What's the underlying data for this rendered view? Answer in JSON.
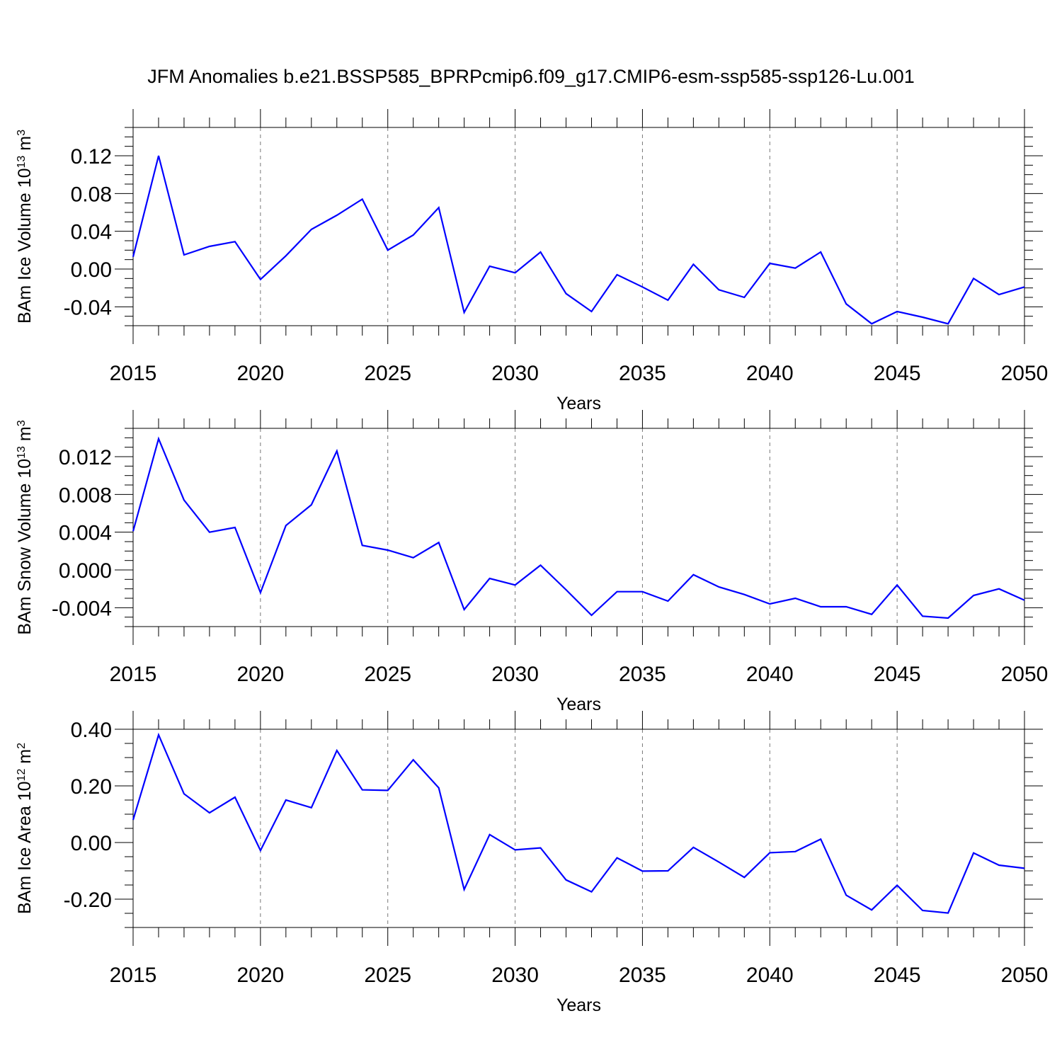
{
  "title": "JFM Anomalies b.e21.BSSP585_BPRPcmip6.f09_g17.CMIP6-esm-ssp585-ssp126-Lu.001",
  "colors": {
    "series": "#0000ff",
    "axis": "#000000",
    "grid": "#777777"
  },
  "chart_data": [
    {
      "type": "line",
      "name": "ice-volume",
      "ylabel": {
        "base": "BAm Ice Volume 10",
        "exp": "13",
        "unit": " m",
        "unit_exp": "3"
      },
      "xlabel": "Years",
      "xlim": [
        2015,
        2050
      ],
      "ylim": [
        -0.06,
        0.15
      ],
      "xticks": [
        2015,
        2020,
        2025,
        2030,
        2035,
        2040,
        2045,
        2050
      ],
      "yticks": [
        -0.04,
        0.0,
        0.04,
        0.08,
        0.12
      ],
      "ytick_labels": [
        "-0.04",
        "0.00",
        "0.04",
        "0.08",
        "0.12"
      ],
      "yminor_step": 0.01,
      "x": [
        2015,
        2016,
        2017,
        2018,
        2019,
        2020,
        2021,
        2022,
        2023,
        2024,
        2025,
        2026,
        2027,
        2028,
        2029,
        2030,
        2031,
        2032,
        2033,
        2034,
        2035,
        2036,
        2037,
        2038,
        2039,
        2040,
        2041,
        2042,
        2043,
        2044,
        2045,
        2046,
        2047,
        2048,
        2049,
        2050
      ],
      "values": [
        0.013,
        0.12,
        0.015,
        0.024,
        0.029,
        -0.011,
        0.014,
        0.042,
        0.057,
        0.074,
        0.02,
        0.036,
        0.065,
        -0.046,
        0.003,
        -0.004,
        0.018,
        -0.026,
        -0.045,
        -0.006,
        -0.019,
        -0.033,
        0.005,
        -0.022,
        -0.03,
        0.006,
        0.001,
        0.018,
        -0.037,
        -0.058,
        -0.045,
        -0.051,
        -0.058,
        -0.01,
        -0.027,
        -0.019
      ]
    },
    {
      "type": "line",
      "name": "snow-volume",
      "ylabel": {
        "base": "BAm Snow Volume 10",
        "exp": "13",
        "unit": " m",
        "unit_exp": "3"
      },
      "xlabel": "Years",
      "xlim": [
        2015,
        2050
      ],
      "ylim": [
        -0.006,
        0.015
      ],
      "xticks": [
        2015,
        2020,
        2025,
        2030,
        2035,
        2040,
        2045,
        2050
      ],
      "yticks": [
        -0.004,
        0.0,
        0.004,
        0.008,
        0.012
      ],
      "ytick_labels": [
        "-0.004",
        "0.000",
        "0.004",
        "0.008",
        "0.012"
      ],
      "yminor_step": 0.001,
      "x": [
        2015,
        2016,
        2017,
        2018,
        2019,
        2020,
        2021,
        2022,
        2023,
        2024,
        2025,
        2026,
        2027,
        2028,
        2029,
        2030,
        2031,
        2032,
        2033,
        2034,
        2035,
        2036,
        2037,
        2038,
        2039,
        2040,
        2041,
        2042,
        2043,
        2044,
        2045,
        2046,
        2047,
        2048,
        2049,
        2050
      ],
      "values": [
        0.0041,
        0.0139,
        0.0074,
        0.004,
        0.0045,
        -0.0024,
        0.0047,
        0.0069,
        0.0126,
        0.0026,
        0.0021,
        0.0013,
        0.0029,
        -0.0042,
        -0.0009,
        -0.0016,
        0.0005,
        -0.0021,
        -0.0048,
        -0.0023,
        -0.0023,
        -0.0033,
        -0.0005,
        -0.0018,
        -0.0026,
        -0.0036,
        -0.003,
        -0.0039,
        -0.0039,
        -0.0047,
        -0.0016,
        -0.0049,
        -0.0051,
        -0.0027,
        -0.002,
        -0.0032
      ]
    },
    {
      "type": "line",
      "name": "ice-area",
      "ylabel": {
        "base": "BAm Ice Area 10",
        "exp": "12",
        "unit": " m",
        "unit_exp": "2"
      },
      "xlabel": "Years",
      "xlim": [
        2015,
        2050
      ],
      "ylim": [
        -0.3,
        0.4
      ],
      "xticks": [
        2015,
        2020,
        2025,
        2030,
        2035,
        2040,
        2045,
        2050
      ],
      "yticks": [
        -0.2,
        0.0,
        0.2,
        0.4
      ],
      "ytick_labels": [
        "-0.20",
        "0.00",
        "0.20",
        "0.40"
      ],
      "yminor_step": 0.05,
      "x": [
        2015,
        2016,
        2017,
        2018,
        2019,
        2020,
        2021,
        2022,
        2023,
        2024,
        2025,
        2026,
        2027,
        2028,
        2029,
        2030,
        2031,
        2032,
        2033,
        2034,
        2035,
        2036,
        2037,
        2038,
        2039,
        2040,
        2041,
        2042,
        2043,
        2044,
        2045,
        2046,
        2047,
        2048,
        2049,
        2050
      ],
      "values": [
        0.08,
        0.38,
        0.172,
        0.105,
        0.16,
        -0.028,
        0.15,
        0.123,
        0.325,
        0.186,
        0.184,
        0.292,
        0.193,
        -0.166,
        0.028,
        -0.026,
        -0.019,
        -0.132,
        -0.174,
        -0.054,
        -0.101,
        -0.1,
        -0.017,
        -0.069,
        -0.123,
        -0.036,
        -0.032,
        0.012,
        -0.186,
        -0.238,
        -0.151,
        -0.24,
        -0.249,
        -0.037,
        -0.08,
        -0.091
      ]
    }
  ]
}
